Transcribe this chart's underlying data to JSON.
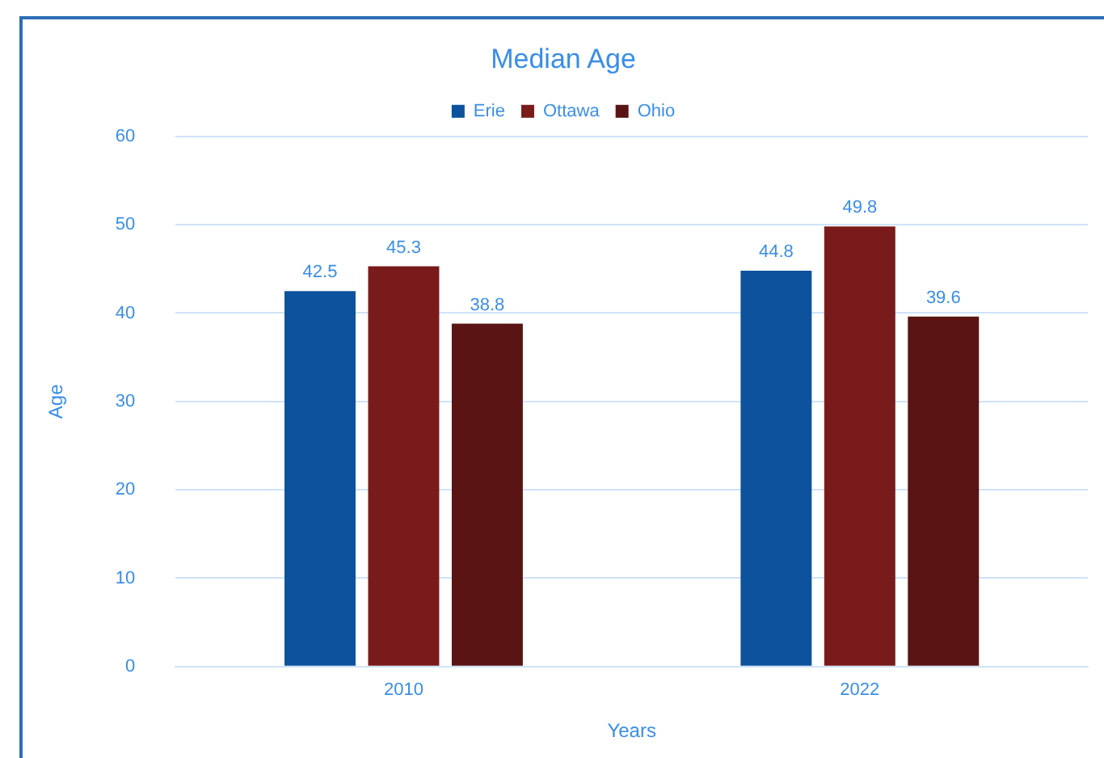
{
  "chart_data": {
    "type": "bar",
    "title": "Median Age",
    "xlabel": "Years",
    "ylabel": "Age",
    "categories": [
      "2010",
      "2022"
    ],
    "series": [
      {
        "name": "Erie",
        "color": "#0c529c",
        "values": [
          42.5,
          44.8
        ]
      },
      {
        "name": "Ottawa",
        "color": "#7a1b1b",
        "values": [
          45.3,
          49.8
        ]
      },
      {
        "name": "Ohio",
        "color": "#5a1414",
        "values": [
          38.8,
          39.6
        ]
      }
    ],
    "ylim": [
      0,
      60
    ],
    "yticks": [
      0,
      10,
      20,
      30,
      40,
      50,
      60
    ],
    "grid": "y",
    "legend": "top",
    "data_labels": true
  }
}
